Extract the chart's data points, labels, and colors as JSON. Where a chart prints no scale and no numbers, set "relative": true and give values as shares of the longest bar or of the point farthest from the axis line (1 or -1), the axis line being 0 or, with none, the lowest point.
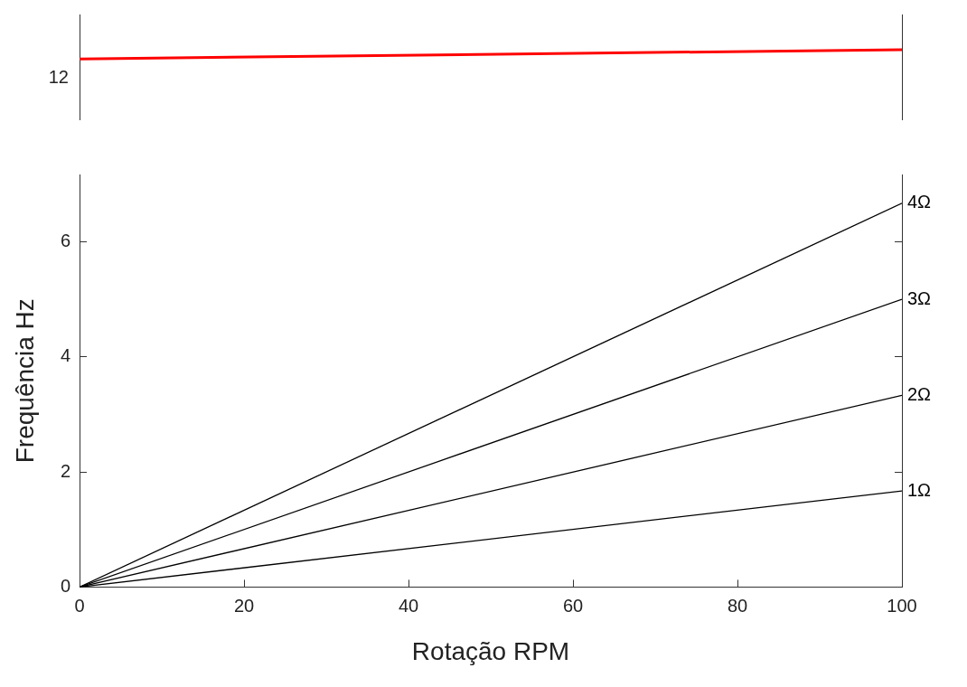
{
  "chart_data": [
    {
      "type": "line",
      "relative": true,
      "annotations": [
        "12"
      ],
      "categories": [
        null,
        null
      ],
      "legend": false,
      "grid": false,
      "marker": "none",
      "series": [
        {
          "color": "#ff0000",
          "values": [
            0.87,
            1
          ]
        }
      ]
    },
    {
      "type": "line",
      "xlabel": "Rotação RPM",
      "ylabel": "Frequência Hz",
      "x": [
        0,
        100
      ],
      "xlim": [
        0,
        100
      ],
      "xticks": [
        0,
        20,
        40,
        60,
        80,
        100
      ],
      "ylim": [
        0,
        7.17
      ],
      "yticks": [
        0,
        2,
        4,
        6
      ],
      "legend": false,
      "grid": false,
      "marker": "none",
      "series": [
        {
          "name": "1Ω",
          "color": "#000000",
          "values": [
            0,
            1.67
          ]
        },
        {
          "name": "2Ω",
          "color": "#000000",
          "values": [
            0,
            3.33
          ]
        },
        {
          "name": "3Ω",
          "color": "#000000",
          "values": [
            0,
            5
          ]
        },
        {
          "name": "4Ω",
          "color": "#000000",
          "values": [
            0,
            6.67
          ]
        }
      ]
    }
  ]
}
